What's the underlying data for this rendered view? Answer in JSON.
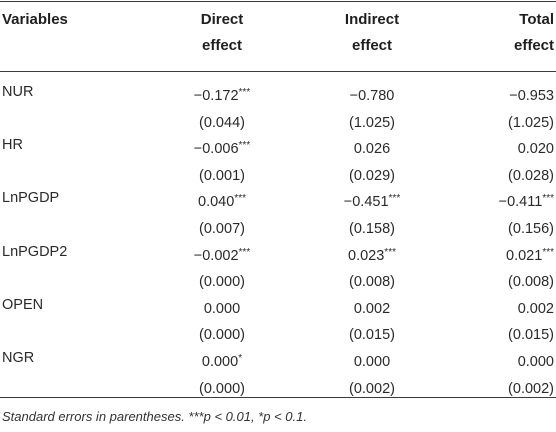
{
  "header": {
    "variables": "Variables",
    "direct": [
      "Direct",
      "effect"
    ],
    "indirect": [
      "Indirect",
      "effect"
    ],
    "total": [
      "Total",
      "effect"
    ]
  },
  "rows": [
    {
      "name": "NUR",
      "direct": "−0.172",
      "direct_sig": "***",
      "indirect": "−0.780",
      "indirect_sig": "",
      "total": "−0.953",
      "total_sig": ""
    },
    {
      "name": "",
      "direct": "(0.044)",
      "direct_sig": "",
      "indirect": "(1.025)",
      "indirect_sig": "",
      "total": "(1.025)",
      "total_sig": ""
    },
    {
      "name": "HR",
      "direct": "−0.006",
      "direct_sig": "***",
      "indirect": "0.026",
      "indirect_sig": "",
      "total": "0.020",
      "total_sig": ""
    },
    {
      "name": "",
      "direct": "(0.001)",
      "direct_sig": "",
      "indirect": "(0.029)",
      "indirect_sig": "",
      "total": "(0.028)",
      "total_sig": ""
    },
    {
      "name": "LnPGDP",
      "direct": "0.040",
      "direct_sig": "***",
      "indirect": "−0.451",
      "indirect_sig": "***",
      "total": "−0.411",
      "total_sig": "***"
    },
    {
      "name": "",
      "direct": "(0.007)",
      "direct_sig": "",
      "indirect": "(0.158)",
      "indirect_sig": "",
      "total": "(0.156)",
      "total_sig": ""
    },
    {
      "name": "LnPGDP2",
      "direct": "−0.002",
      "direct_sig": "***",
      "indirect": "0.023",
      "indirect_sig": "***",
      "total": "0.021",
      "total_sig": "***"
    },
    {
      "name": "",
      "direct": "(0.000)",
      "direct_sig": "",
      "indirect": "(0.008)",
      "indirect_sig": "",
      "total": "(0.008)",
      "total_sig": ""
    },
    {
      "name": "OPEN",
      "direct": "0.000",
      "direct_sig": "",
      "indirect": "0.002",
      "indirect_sig": "",
      "total": "0.002",
      "total_sig": ""
    },
    {
      "name": "",
      "direct": "(0.000)",
      "direct_sig": "",
      "indirect": "(0.015)",
      "indirect_sig": "",
      "total": "(0.015)",
      "total_sig": ""
    },
    {
      "name": "NGR",
      "direct": "0.000",
      "direct_sig": "*",
      "indirect": "0.000",
      "indirect_sig": "",
      "total": "0.000",
      "total_sig": ""
    },
    {
      "name": "",
      "direct": "(0.000)",
      "direct_sig": "",
      "indirect": "(0.002)",
      "indirect_sig": "",
      "total": "(0.002)",
      "total_sig": ""
    }
  ],
  "note": "Standard errors in parentheses. ***p < 0.01, *p < 0.1."
}
